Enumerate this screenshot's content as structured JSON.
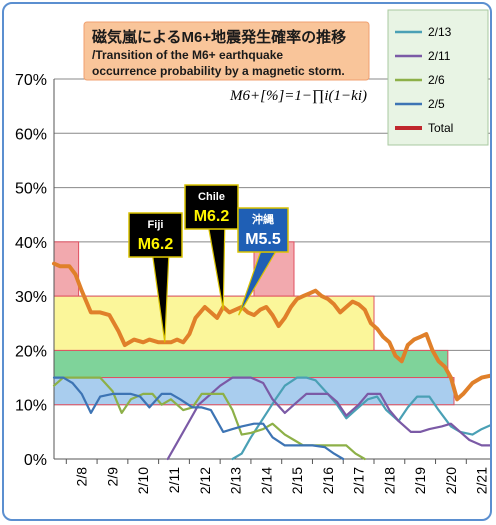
{
  "chart_data": {
    "type": "line",
    "title_jp": "磁気嵐によるM6+地震発生確率の推移",
    "title_en_1": "/Transition of the M6+ earthquake",
    "title_en_2": "occurrence probability by a magnetic storm.",
    "formula": "M6+[%]=1−∏i(1−ki)",
    "yticks": [
      "0%",
      "10%",
      "20%",
      "30%",
      "40%",
      "50%",
      "60%",
      "70%"
    ],
    "ylim": [
      0,
      70
    ],
    "xlim": [
      7.6,
      21.9
    ],
    "xticks": [
      "2/8",
      "2/9",
      "2/10",
      "2/11",
      "2/12",
      "2/13",
      "2/14",
      "2/15",
      "2/16",
      "2/17",
      "2/18",
      "2/19",
      "2/20",
      "2/21"
    ],
    "xtick_days": [
      8,
      9,
      10,
      11,
      12,
      13,
      14,
      15,
      16,
      17,
      18,
      19,
      20,
      21
    ],
    "legend": [
      "2/13",
      "2/11",
      "2/6",
      "2/5",
      "Total"
    ],
    "colors": {
      "s2_13": "#4aa0b5",
      "s2_11": "#7b5aa6",
      "s2_6": "#8db048",
      "s2_5": "#3d74b4",
      "total": "#c0272d",
      "total_line": "#e0802a"
    },
    "bands": [
      {
        "x0": 7.6,
        "x1": 8.4,
        "y0": 30,
        "y1": 40,
        "fill": "#f2a9ae",
        "stroke": "#e05060"
      },
      {
        "x0": 14.1,
        "x1": 15.4,
        "y0": 30,
        "y1": 40,
        "fill": "#f2a9ae",
        "stroke": "#e05060"
      },
      {
        "x0": 7.6,
        "x1": 18.0,
        "y0": 20,
        "y1": 30,
        "fill": "#fbf69a",
        "stroke": "#e05060"
      },
      {
        "x0": 7.6,
        "x1": 20.4,
        "y0": 15,
        "y1": 20,
        "fill": "#7fd39a",
        "stroke": "#e05060"
      },
      {
        "x0": 7.6,
        "x1": 20.6,
        "y0": 10,
        "y1": 15,
        "fill": "#a9cdee",
        "stroke": "#e05060"
      }
    ],
    "series": [
      {
        "name": "2/13",
        "x": [
          13.4,
          13.7,
          14.0,
          14.4,
          14.8,
          15.1,
          15.5,
          15.8,
          16.1,
          16.5,
          16.8,
          17.1,
          17.4,
          17.8,
          18.1,
          18.4,
          18.8,
          19.1,
          19.4,
          19.8,
          20.1,
          20.5,
          20.8,
          21.2,
          21.5,
          21.9
        ],
        "y": [
          0,
          1,
          4,
          7.5,
          11,
          13.5,
          15,
          15,
          14.5,
          12,
          10,
          7.5,
          9,
          11,
          11.5,
          9,
          7,
          9.5,
          11.5,
          11.5,
          9,
          6,
          5,
          4.5,
          5.5,
          6.5
        ]
      },
      {
        "name": "2/11",
        "x": [
          11.3,
          11.6,
          12.0,
          12.3,
          12.7,
          13.0,
          13.4,
          13.7,
          14.0,
          14.4,
          14.7,
          15.1,
          15.4,
          15.8,
          16.1,
          16.5,
          16.8,
          17.1,
          17.5,
          17.8,
          18.2,
          18.5,
          18.8,
          19.2,
          19.5,
          19.8,
          20.2,
          20.5,
          20.8,
          21.1,
          21.5,
          21.9
        ],
        "y": [
          0,
          3,
          7,
          10,
          12,
          13.5,
          15,
          15,
          15,
          14,
          11,
          8.5,
          10,
          12,
          12,
          12,
          10.5,
          8,
          10,
          12,
          12,
          9,
          7,
          5,
          5,
          5.5,
          6,
          6.5,
          5,
          3.5,
          2.5,
          2.5
        ]
      },
      {
        "name": "2/6",
        "x": [
          7.6,
          7.9,
          8.2,
          8.5,
          8.8,
          9.1,
          9.5,
          9.8,
          10.1,
          10.5,
          10.8,
          11.1,
          11.4,
          11.8,
          12.1,
          12.4,
          12.8,
          13.1,
          13.4,
          13.7,
          14.0,
          14.4,
          14.7,
          15.1,
          15.4,
          15.7,
          16.1,
          16.4,
          16.7,
          17.1,
          17.4,
          17.7
        ],
        "y": [
          13.5,
          15,
          15,
          15,
          15,
          15,
          12.5,
          8.5,
          11,
          12,
          12,
          10,
          11,
          9,
          9.5,
          12,
          12,
          12,
          9,
          4.5,
          4.8,
          5.5,
          6.5,
          4.5,
          3.5,
          2.5,
          2.5,
          2.5,
          2.5,
          2.5,
          1,
          0
        ]
      },
      {
        "name": "2/5",
        "x": [
          7.6,
          7.9,
          8.2,
          8.5,
          8.8,
          9.1,
          9.5,
          9.8,
          10.1,
          10.4,
          10.7,
          11.1,
          11.4,
          11.7,
          12.1,
          12.4,
          12.7,
          13.1,
          13.4,
          13.7,
          14.1,
          14.4,
          14.7,
          15.1,
          15.4,
          15.7,
          16.0,
          16.4,
          16.7,
          17.0
        ],
        "y": [
          15,
          15,
          14,
          12,
          8.5,
          11.5,
          12,
          12,
          12,
          11.5,
          9.5,
          12,
          12,
          11,
          9.5,
          9.5,
          9,
          5,
          5.5,
          6,
          6.5,
          6.5,
          4,
          2.5,
          2.5,
          2.5,
          2.5,
          2.2,
          1,
          0
        ]
      },
      {
        "name": "Total",
        "x": [
          7.6,
          7.8,
          8.1,
          8.3,
          8.5,
          8.8,
          9.1,
          9.4,
          9.7,
          9.9,
          10.2,
          10.5,
          10.7,
          11.0,
          11.2,
          11.4,
          11.6,
          11.8,
          12.0,
          12.2,
          12.5,
          12.7,
          12.9,
          13.1,
          13.3,
          13.5,
          13.7,
          13.9,
          14.1,
          14.3,
          14.5,
          14.7,
          14.9,
          15.1,
          15.3,
          15.5,
          15.7,
          15.9,
          16.1,
          16.3,
          16.5,
          16.7,
          16.9,
          17.1,
          17.3,
          17.5,
          17.7,
          17.9,
          18.1,
          18.3,
          18.5,
          18.7,
          18.9,
          19.1,
          19.3,
          19.5,
          19.7,
          19.9,
          20.1,
          20.3,
          20.5,
          20.7,
          20.9,
          21.2,
          21.5,
          21.9
        ],
        "y": [
          36,
          35.5,
          35.5,
          34,
          31,
          27,
          27,
          26.5,
          23.5,
          21,
          22,
          21.5,
          22,
          21.5,
          21.5,
          21.5,
          22,
          21.5,
          23,
          26,
          28,
          27,
          26,
          28,
          27,
          27.5,
          28,
          27,
          26.5,
          27.5,
          28,
          26.5,
          24.5,
          26,
          28,
          29.5,
          30,
          30.5,
          31,
          30,
          29.5,
          28.5,
          27,
          28,
          29,
          28.5,
          27.5,
          25,
          24,
          22.5,
          21.5,
          19,
          18,
          21,
          22,
          22.5,
          23,
          20,
          18,
          17,
          15,
          11,
          12,
          14,
          15,
          15.5
        ]
      }
    ],
    "callouts": [
      {
        "label": "Fiji",
        "mag": "M6.2",
        "box_fill": "#000000",
        "mag_color": "#fff500",
        "target_x": 11.2,
        "target_y": 21.5
      },
      {
        "label": "Chile",
        "mag": "M6.2",
        "box_fill": "#000000",
        "mag_color": "#fff500",
        "target_x": 13.1,
        "target_y": 27.5
      },
      {
        "label": "沖縄",
        "mag": "M5.5",
        "box_fill": "#1f5fb5",
        "mag_color": "#ffffff",
        "target_x": 13.6,
        "target_y": 26.5
      }
    ]
  }
}
